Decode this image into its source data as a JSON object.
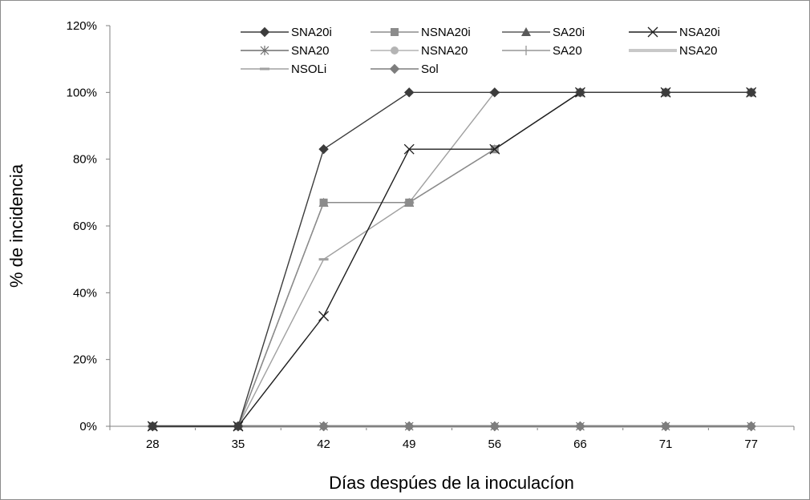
{
  "chart_data": {
    "type": "line",
    "title": "",
    "xlabel": "Días despúes de la inoculacíon",
    "ylabel": "% de incidencia",
    "categories": [
      "28",
      "35",
      "42",
      "49",
      "56",
      "66",
      "71",
      "77"
    ],
    "ylim": [
      0,
      120
    ],
    "ytick_values": [
      0,
      20,
      40,
      60,
      80,
      100,
      120
    ],
    "ytick_labels": [
      "0%",
      "20%",
      "40%",
      "60%",
      "80%",
      "100%",
      "120%"
    ],
    "grid": false,
    "legend_position": "top",
    "series": [
      {
        "name": "SNA20i",
        "color": "#3c3c3c",
        "marker": "diamond",
        "values": [
          0,
          0,
          83,
          100,
          100,
          100,
          100,
          100
        ]
      },
      {
        "name": "NSNA20i",
        "color": "#8c8c8c",
        "marker": "square",
        "values": [
          0,
          0,
          67,
          67,
          83,
          100,
          100,
          100
        ]
      },
      {
        "name": "SA20i",
        "color": "#5a5a5a",
        "marker": "triangle",
        "values": [
          0,
          0,
          67,
          67,
          83,
          100,
          100,
          100
        ]
      },
      {
        "name": "NSA20i",
        "color": "#1e1e1e",
        "marker": "x",
        "values": [
          0,
          0,
          33,
          83,
          83,
          100,
          100,
          100
        ]
      },
      {
        "name": "SNA20",
        "color": "#6e6e6e",
        "marker": "star",
        "values": [
          0,
          0,
          0,
          0,
          0,
          0,
          0,
          0
        ]
      },
      {
        "name": "NSNA20",
        "color": "#b4b4b4",
        "marker": "circle",
        "values": [
          0,
          0,
          0,
          0,
          0,
          0,
          0,
          0
        ]
      },
      {
        "name": "SA20",
        "color": "#969696",
        "marker": "plus",
        "values": [
          0,
          0,
          0,
          0,
          0,
          0,
          0,
          0
        ]
      },
      {
        "name": "NSA20",
        "color": "#c8c8c8",
        "marker": "none",
        "values": [
          0,
          0,
          0,
          0,
          0,
          0,
          0,
          0
        ]
      },
      {
        "name": "NSOLi",
        "color": "#a0a0a0",
        "marker": "dash",
        "values": [
          0,
          0,
          50,
          67,
          100,
          100,
          100,
          100
        ]
      },
      {
        "name": "Sol",
        "color": "#7d7d7d",
        "marker": "diamond",
        "values": [
          0,
          0,
          0,
          0,
          0,
          0,
          0,
          0
        ]
      }
    ]
  }
}
